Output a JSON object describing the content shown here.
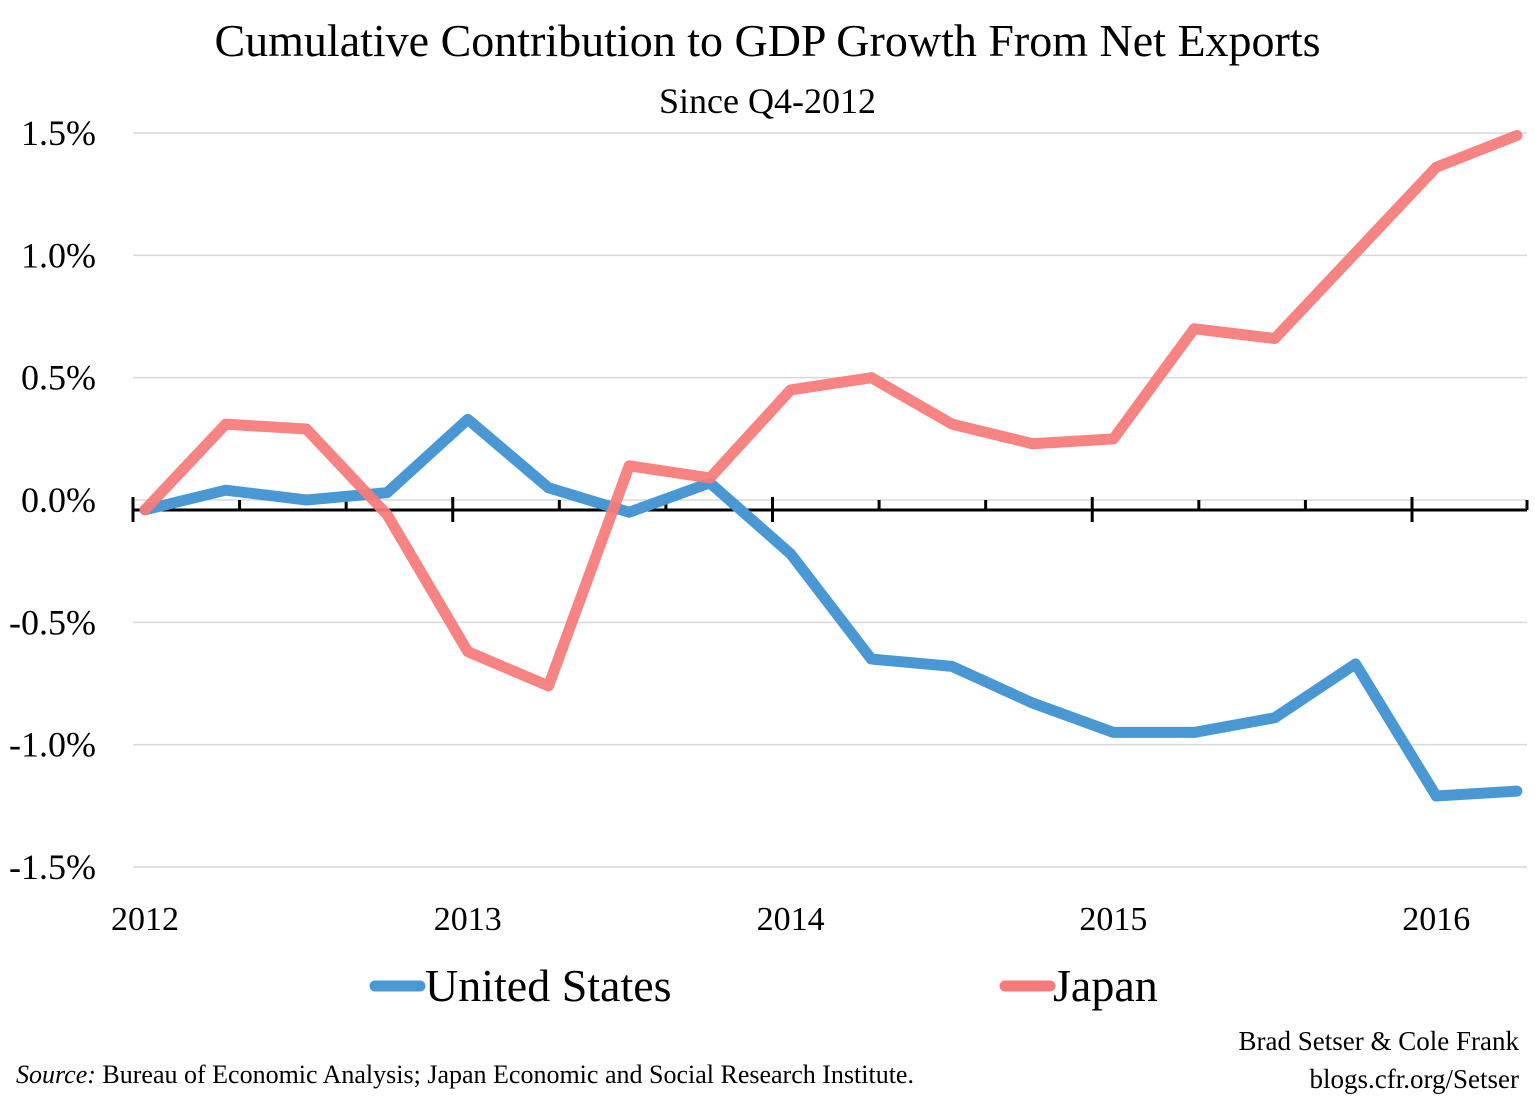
{
  "chart_data": {
    "type": "line",
    "title": "Cumulative Contribution to GDP Growth From Net Exports",
    "subtitle": "Since Q4-2012",
    "xlabel": "",
    "ylabel": "",
    "x_tick_labels": [
      "2012",
      "2013",
      "2014",
      "2015",
      "2016"
    ],
    "y_tick_labels": [
      "1.5%",
      "1.0%",
      "0.5%",
      "0.0%",
      "-0.5%",
      "-1.0%",
      "-1.5%"
    ],
    "ylim": [
      -1.5,
      1.5
    ],
    "grid": true,
    "legend_position": "bottom",
    "series": [
      {
        "name": "United States",
        "color": "#4a98d3",
        "values": [
          -0.04,
          0.04,
          0.0,
          0.03,
          0.33,
          0.05,
          -0.05,
          0.07,
          -0.22,
          -0.65,
          -0.68,
          -0.83,
          -0.95,
          -0.95,
          -0.89,
          -0.67,
          -1.21,
          -1.19
        ]
      },
      {
        "name": "Japan",
        "color": "#f87a7a",
        "values": [
          -0.04,
          0.31,
          0.29,
          -0.06,
          -0.62,
          -0.76,
          0.14,
          0.09,
          0.45,
          0.5,
          0.31,
          0.23,
          0.25,
          0.7,
          0.66,
          1.01,
          1.36,
          1.49
        ]
      }
    ]
  },
  "credits": {
    "authors": "Brad Setser & Cole Frank",
    "site": "blogs.cfr.org/Setser"
  },
  "source": {
    "label": "Source:",
    "text": " Bureau of Economic Analysis; Japan Economic and Social Research Institute."
  }
}
